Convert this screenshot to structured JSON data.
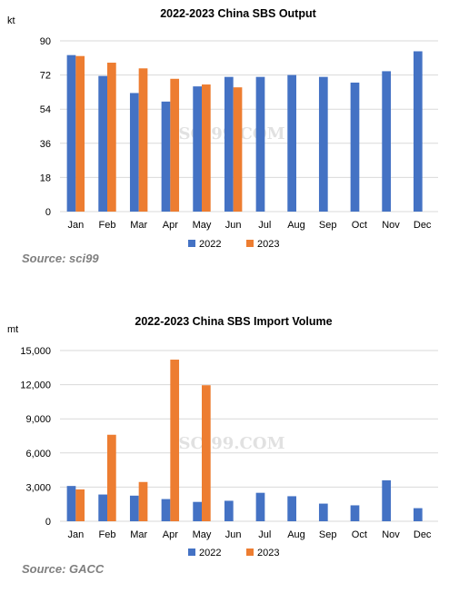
{
  "chart_data": [
    {
      "type": "bar",
      "title": "2022-2023  China SBS Output",
      "unit": "kt",
      "categories": [
        "Jan",
        "Feb",
        "Mar",
        "Apr",
        "May",
        "Jun",
        "Jul",
        "Aug",
        "Sep",
        "Oct",
        "Nov",
        "Dec"
      ],
      "series": [
        {
          "name": "2022",
          "color": "#4472c4",
          "values": [
            82.5,
            71.5,
            62.5,
            58,
            66,
            71,
            71,
            72,
            71,
            68,
            74,
            84.5
          ]
        },
        {
          "name": "2023",
          "color": "#ed7d31",
          "values": [
            82,
            78.5,
            75.5,
            70,
            67,
            65.5,
            null,
            null,
            null,
            null,
            null,
            null
          ]
        }
      ],
      "ylim": [
        0,
        90
      ],
      "yticks": [
        0,
        18,
        36,
        54,
        72,
        90
      ],
      "ytick_labels": [
        "0",
        "18",
        "36",
        "54",
        "72",
        "90"
      ],
      "grid": true,
      "legend_position": "bottom",
      "source": "Source: sci99",
      "watermark": "SCI99.COM"
    },
    {
      "type": "bar",
      "title": "2022-2023  China SBS Import Volume",
      "unit": "mt",
      "categories": [
        "Jan",
        "Feb",
        "Mar",
        "Apr",
        "May",
        "Jun",
        "Jul",
        "Aug",
        "Sep",
        "Oct",
        "Nov",
        "Dec"
      ],
      "series": [
        {
          "name": "2022",
          "color": "#4472c4",
          "values": [
            3100,
            2350,
            2250,
            1950,
            1700,
            1800,
            2500,
            2200,
            1550,
            1400,
            3600,
            1150
          ]
        },
        {
          "name": "2023",
          "color": "#ed7d31",
          "values": [
            2800,
            7600,
            3450,
            14200,
            11950,
            null,
            null,
            null,
            null,
            null,
            null,
            null
          ]
        }
      ],
      "ylim": [
        0,
        15000
      ],
      "yticks": [
        0,
        3000,
        6000,
        9000,
        12000,
        15000
      ],
      "ytick_labels": [
        "0",
        "3,000",
        "6,000",
        "9,000",
        "12,000",
        "15,000"
      ],
      "grid": true,
      "legend_position": "bottom",
      "source": "Source: GACC",
      "watermark": "SCI99.COM"
    }
  ]
}
